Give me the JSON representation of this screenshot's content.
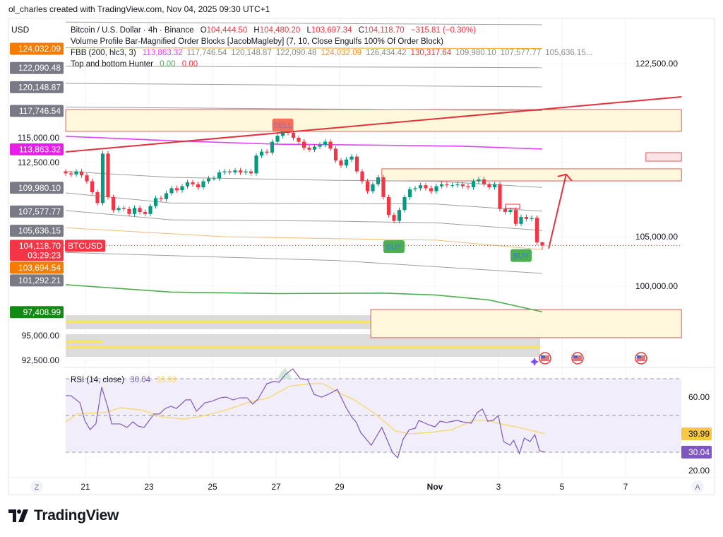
{
  "credit": "ol_charles created with TradingView.com, Nov 04, 2025 09:30 UTC+1",
  "currency": "USD",
  "legend": {
    "symbol": "Bitcoin / U.S. Dollar · 4h · Binance",
    "o_label": "O",
    "o": "104,444.50",
    "h_label": "H",
    "h": "104,480.20",
    "l_label": "L",
    "l": "103,697.34",
    "c_label": "C",
    "c": "104,118.70",
    "change": "−315.81 (−0.30%)",
    "indicator2": "Volume Profile Bar-Magnified Order Blocks [JacobMagleby] (7, 10, Close Engulfs 100% Of Order Block)",
    "fbb_name": "FBB (200, hlc3, 3)",
    "fbb_values": [
      {
        "v": "113,863.32",
        "color": "#e040fb"
      },
      {
        "v": "117,746.54",
        "color": "#8a8a8a"
      },
      {
        "v": "120,148.87",
        "color": "#8a8a8a"
      },
      {
        "v": "122,090.48",
        "color": "#8a8a8a"
      },
      {
        "v": "124,032.09",
        "color": "#f7931a"
      },
      {
        "v": "126,434.42",
        "color": "#8a8a8a"
      },
      {
        "v": "130,317.64",
        "color": "#e53935"
      },
      {
        "v": "109,980.10",
        "color": "#8a8a8a"
      },
      {
        "v": "107,577.77",
        "color": "#8a8a8a"
      },
      {
        "v": "105,636.15...",
        "color": "#8a8a8a"
      }
    ],
    "indicator4": "Top and bottom Hunter",
    "hunter_a": "0.00",
    "hunter_b": "0.00"
  },
  "price_axis": {
    "ticks": [
      {
        "label": "122,500.00",
        "price": 122500
      },
      {
        "label": "115,000.00",
        "price": 115000
      },
      {
        "label": "112,500.00",
        "price": 112500
      },
      {
        "label": "105,000.00",
        "price": 105000
      },
      {
        "label": "100,000.00",
        "price": 100000
      },
      {
        "label": "95,000.00",
        "price": 95000
      },
      {
        "label": "92,500.00",
        "price": 92500
      }
    ],
    "badges": [
      {
        "label": "124,032.09",
        "price": 124032.09,
        "color": "#f57c00"
      },
      {
        "label": "122,090.48",
        "price": 122090.48,
        "color": "#787b86"
      },
      {
        "label": "120,148.87",
        "price": 120148.87,
        "color": "#787b86"
      },
      {
        "label": "117,746.54",
        "price": 117746.54,
        "color": "#787b86"
      },
      {
        "label": "113,863.32",
        "price": 113863.32,
        "color": "#e91ee9"
      },
      {
        "label": "109,980.10",
        "price": 109980.1,
        "color": "#787b86"
      },
      {
        "label": "107,577.77",
        "price": 107577.77,
        "color": "#787b86"
      },
      {
        "label": "105,636.15",
        "price": 105636.15,
        "color": "#787b86"
      },
      {
        "label": "103,694.54",
        "price": 102480,
        "color": "#f57c00"
      },
      {
        "label": "101,292.21",
        "price": 101300,
        "color": "#787b86"
      },
      {
        "label": "97,408.99",
        "price": 97408.99,
        "color": "#138a13"
      }
    ],
    "last_price": {
      "label": "104,118.70",
      "countdown": "03:29:23",
      "price": 104118.7,
      "color": "#f23645",
      "symbol_tag": "BTCUSD"
    }
  },
  "time_axis": {
    "ticks": [
      {
        "label": "21",
        "day": 21
      },
      {
        "label": "23",
        "day": 23
      },
      {
        "label": "25",
        "day": 25
      },
      {
        "label": "27",
        "day": 27
      },
      {
        "label": "29",
        "day": 29
      },
      {
        "label": "Nov",
        "day": 32,
        "bold": true
      },
      {
        "label": "3",
        "day": 34
      },
      {
        "label": "5",
        "day": 36
      },
      {
        "label": "7",
        "day": 38
      }
    ],
    "left_button": "Z",
    "right_button": "A"
  },
  "colors": {
    "up": "#089981",
    "down": "#f23645",
    "rsi": "#7e57c2",
    "rsi_ma": "#f5d76e",
    "zone": "#fff8dc",
    "zone_border": "#e05a5a",
    "trend": "#e0323c"
  },
  "chart_data": [
    {
      "type": "candlestick",
      "title": "Bitcoin / U.S. Dollar · 4h · Binance",
      "bar_interval_hours": 4,
      "first_bar_day": 20.38,
      "first_open": 111600,
      "ylim": [
        91500,
        128000
      ],
      "close": [
        111400,
        111300,
        111600,
        111200,
        110600,
        109500,
        108400,
        113400,
        109000,
        107700,
        107900,
        107800,
        107300,
        107900,
        107500,
        107300,
        108100,
        108900,
        108800,
        109400,
        109900,
        109700,
        110100,
        110500,
        110300,
        110000,
        110600,
        110900,
        110900,
        111500,
        111600,
        111500,
        111700,
        111500,
        111600,
        111400,
        113200,
        113600,
        113500,
        114600,
        115200,
        115800,
        115500,
        115000,
        114600,
        114000,
        113800,
        114100,
        114300,
        114600,
        113900,
        112700,
        112200,
        112800,
        113100,
        111600,
        110600,
        109600,
        110300,
        111000,
        109000,
        107200,
        106600,
        107700,
        109000,
        109800,
        109900,
        110200,
        109900,
        109600,
        110100,
        110300,
        110200,
        110200,
        110300,
        110100,
        110000,
        110600,
        110800,
        110300,
        110000,
        110300,
        107800,
        107500,
        107700,
        106300,
        107000,
        106800,
        106900,
        104444.5,
        104118.7
      ],
      "last_bar": {
        "open": 104444.5,
        "high": 104480.2,
        "low": 103697.34,
        "close": 104118.7
      },
      "signals": [
        {
          "label": "SELL",
          "bar": 41,
          "price": 116300,
          "color": "#f2725a"
        },
        {
          "label": "BUY",
          "bar": 62,
          "price": 104000,
          "color": "#4caf50"
        },
        {
          "label": "BUY",
          "bar": 86,
          "price": 103100,
          "color": "#4caf50"
        }
      ],
      "bands": [
        {
          "name": "fbb-upper-5",
          "color": "#9e9e9e",
          "points": [
            [
              0,
              126700
            ],
            [
              90,
              126434
            ]
          ]
        },
        {
          "name": "fbb-upper-4",
          "color": "#f5a623",
          "points": [
            [
              0,
              124100
            ],
            [
              90,
              124032
            ]
          ]
        },
        {
          "name": "fbb-upper-3",
          "color": "#9e9e9e",
          "points": [
            [
              0,
              122250
            ],
            [
              90,
              122090
            ]
          ]
        },
        {
          "name": "fbb-upper-2",
          "color": "#9e9e9e",
          "points": [
            [
              0,
              120500
            ],
            [
              90,
              120148
            ]
          ]
        },
        {
          "name": "fbb-upper-1",
          "color": "#9e9e9e",
          "points": [
            [
              0,
              118100
            ],
            [
              90,
              117746
            ]
          ]
        },
        {
          "name": "fbb-basis",
          "color": "#e040fb",
          "points": [
            [
              0,
              115150
            ],
            [
              20,
              114700
            ],
            [
              40,
              114350
            ],
            [
              60,
              114250
            ],
            [
              75,
              114150
            ],
            [
              90,
              113863
            ]
          ]
        },
        {
          "name": "fbb-lower-1",
          "color": "#9e9e9e",
          "points": [
            [
              0,
              111600
            ],
            [
              20,
              111000
            ],
            [
              51,
              110700
            ],
            [
              70,
              110600
            ],
            [
              90,
              109980
            ]
          ]
        },
        {
          "name": "fbb-lower-2",
          "color": "#9e9e9e",
          "points": [
            [
              0,
              109430
            ],
            [
              20,
              108400
            ],
            [
              51,
              108360
            ],
            [
              70,
              108300
            ],
            [
              90,
              107577
            ]
          ]
        },
        {
          "name": "fbb-lower-3",
          "color": "#9e9e9e",
          "points": [
            [
              0,
              107650
            ],
            [
              20,
              106700
            ],
            [
              51,
              106570
            ],
            [
              70,
              106400
            ],
            [
              90,
              105636
            ]
          ]
        },
        {
          "name": "fbb-lower-4",
          "color": "#f5b97a",
          "points": [
            [
              0,
              105900
            ],
            [
              30,
              105000
            ],
            [
              51,
              104800
            ],
            [
              70,
              104650
            ],
            [
              90,
              103694
            ]
          ]
        },
        {
          "name": "fbb-lower-5",
          "color": "#9e9e9e",
          "points": [
            [
              0,
              103400
            ],
            [
              51,
              102600
            ],
            [
              90,
              101292
            ]
          ]
        },
        {
          "name": "fbb-lower-6",
          "color": "#4caf50",
          "points": [
            [
              0,
              100150
            ],
            [
              20,
              99400
            ],
            [
              40,
              99250
            ],
            [
              60,
              99300
            ],
            [
              70,
              99100
            ],
            [
              80,
              98600
            ],
            [
              90,
              97408
            ]
          ]
        }
      ],
      "zones": [
        {
          "name": "supply-zone-upper",
          "day_from": 20.38,
          "day_to": 39.76,
          "price_top": 117850,
          "price_bottom": 115650
        },
        {
          "name": "order-block-mid",
          "day_from": 30.33,
          "day_to": 39.76,
          "price_top": 111860,
          "price_bottom": 110640
        },
        {
          "name": "order-block-small",
          "day_from": 38.64,
          "day_to": 39.76,
          "price_top": 113500,
          "price_bottom": 112640,
          "pink": true
        },
        {
          "name": "demand-zone-lower",
          "day_from": 29.98,
          "day_to": 39.76,
          "price_top": 97640,
          "price_bottom": 94790
        }
      ],
      "trendline": {
        "day_from": 20.38,
        "price_from": 113570,
        "day_to": 39.76,
        "price_to": 119140
      },
      "projection_arrow": {
        "day_from": 35.58,
        "price_from": 103800,
        "day_to": 36.13,
        "price_to": 111300
      }
    },
    {
      "type": "line",
      "title": "RSI (14, close)",
      "value_label": "30.04",
      "ma_label": "39.99",
      "ylim": [
        14,
        77
      ],
      "bands": [
        70,
        50,
        30
      ],
      "ticks": [
        {
          "label": "60.00",
          "v": 60
        },
        {
          "label": "20.00",
          "v": 20
        }
      ],
      "series": [
        {
          "name": "RSI",
          "points": [
            [
              0,
              60.8
            ],
            [
              1,
              60.8
            ],
            [
              2.7,
              56.9
            ],
            [
              3.6,
              47.3
            ],
            [
              4.6,
              42.3
            ],
            [
              5.7,
              45.4
            ],
            [
              6.8,
              65.4
            ],
            [
              7.9,
              55
            ],
            [
              8.7,
              45.4
            ],
            [
              10.3,
              45.4
            ],
            [
              11.6,
              43.5
            ],
            [
              12.7,
              46.5
            ],
            [
              13.7,
              44.2
            ],
            [
              14.8,
              43.5
            ],
            [
              16.7,
              50.8
            ],
            [
              17.7,
              50.8
            ],
            [
              18.8,
              53.8
            ],
            [
              19.9,
              55
            ],
            [
              20.9,
              53.8
            ],
            [
              22.7,
              58.5
            ],
            [
              23.6,
              58.5
            ],
            [
              24.7,
              52.3
            ],
            [
              26.3,
              56.9
            ],
            [
              27.6,
              57.7
            ],
            [
              29.2,
              59.6
            ],
            [
              30.3,
              60
            ],
            [
              31.6,
              58.5
            ],
            [
              32.9,
              59.6
            ],
            [
              34.3,
              59.6
            ],
            [
              35.3,
              56.2
            ],
            [
              36.3,
              58.8
            ],
            [
              38,
              67.3
            ],
            [
              39.3,
              68.5
            ],
            [
              40.3,
              68.1
            ],
            [
              41.5,
              72.3
            ],
            [
              42.9,
              75.4
            ],
            [
              44.3,
              70
            ],
            [
              45.7,
              69.6
            ],
            [
              46.9,
              61.5
            ],
            [
              48.3,
              60
            ],
            [
              49.6,
              61.5
            ],
            [
              51.3,
              64.2
            ],
            [
              52.9,
              54.6
            ],
            [
              54,
              49.2
            ],
            [
              54.9,
              46.2
            ],
            [
              55.7,
              40.8
            ],
            [
              57.7,
              33.8
            ],
            [
              59.7,
              43.5
            ],
            [
              61.7,
              30
            ],
            [
              62.7,
              26.9
            ],
            [
              63.7,
              36.9
            ],
            [
              64.9,
              42.3
            ],
            [
              66,
              43
            ],
            [
              66.7,
              47.3
            ],
            [
              68.5,
              45
            ],
            [
              69.7,
              43.8
            ],
            [
              70.7,
              46.9
            ],
            [
              71.9,
              46.2
            ],
            [
              73.9,
              47.3
            ],
            [
              75,
              46.5
            ],
            [
              76.6,
              45.8
            ],
            [
              77.7,
              51.5
            ],
            [
              78.7,
              53.5
            ],
            [
              79.7,
              46.9
            ],
            [
              80.7,
              47.3
            ],
            [
              81.7,
              50
            ],
            [
              82.7,
              35.8
            ],
            [
              83.9,
              33.8
            ],
            [
              84.6,
              36.5
            ],
            [
              85.7,
              29.2
            ],
            [
              86.6,
              37.7
            ],
            [
              87.7,
              35.8
            ],
            [
              88.6,
              39.6
            ],
            [
              89.5,
              30.8
            ],
            [
              90.5,
              30.04
            ]
          ]
        },
        {
          "name": "RSI-based MA",
          "points": [
            [
              0,
              46.5
            ],
            [
              2.3,
              51
            ],
            [
              4.9,
              51.3
            ],
            [
              7.6,
              51.7
            ],
            [
              10.3,
              54.2
            ],
            [
              14.3,
              53
            ],
            [
              18.3,
              49.2
            ],
            [
              22.3,
              48
            ],
            [
              26.3,
              50
            ],
            [
              30.3,
              53
            ],
            [
              34.3,
              56.9
            ],
            [
              38.3,
              59.6
            ],
            [
              42.3,
              66
            ],
            [
              46.3,
              67.3
            ],
            [
              48.7,
              67.3
            ],
            [
              51.6,
              62.3
            ],
            [
              54.3,
              58.8
            ],
            [
              58.3,
              51.2
            ],
            [
              62.3,
              41.5
            ],
            [
              65,
              40
            ],
            [
              69,
              40.8
            ],
            [
              73,
              42.3
            ],
            [
              77,
              47.3
            ],
            [
              79.6,
              47.3
            ],
            [
              82.3,
              45.4
            ],
            [
              86.3,
              43
            ],
            [
              90.5,
              39.99
            ]
          ]
        }
      ]
    }
  ],
  "brand": "TradingView"
}
